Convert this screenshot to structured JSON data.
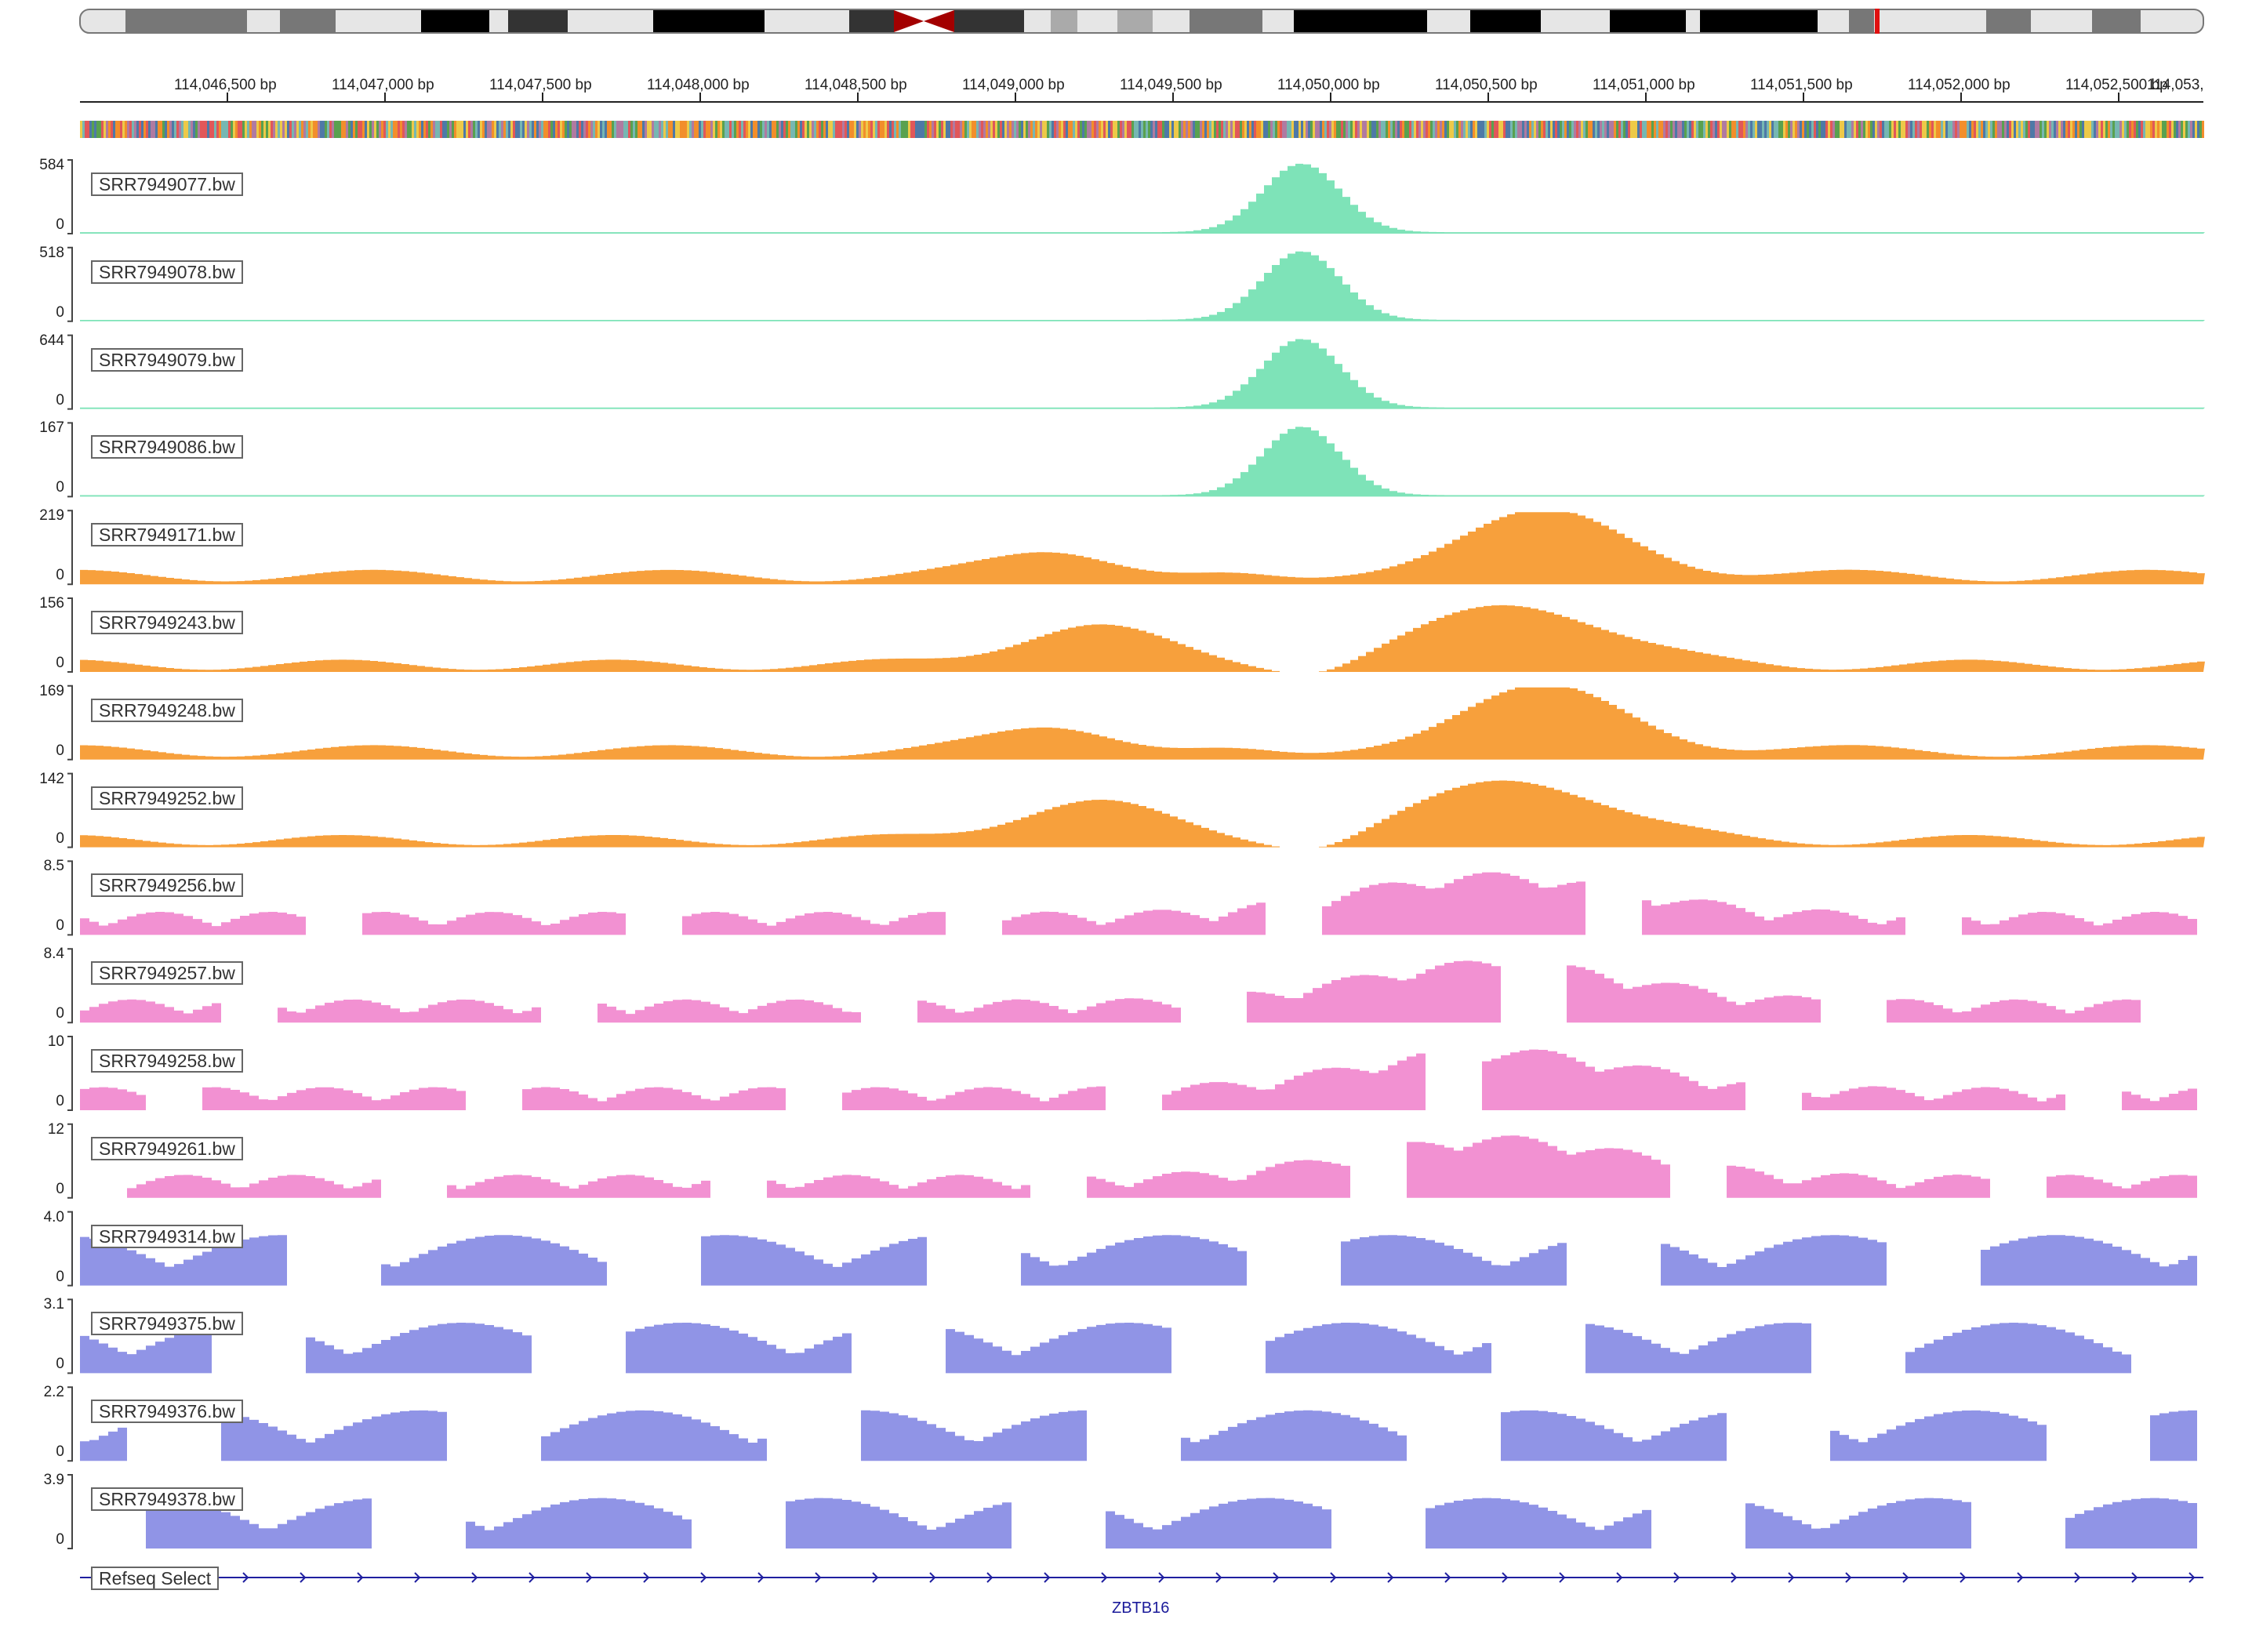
{
  "ruler": {
    "tick_labels": [
      "114,046,500 bp",
      "114,047,000 bp",
      "114,047,500 bp",
      "114,048,000 bp",
      "114,048,500 bp",
      "114,049,000 bp",
      "114,049,500 bp",
      "114,050,000 bp",
      "114,050,500 bp",
      "114,051,000 bp",
      "114,051,500 bp",
      "114,052,000 bp",
      "114,052,500 bp",
      "114,053,"
    ]
  },
  "colors": {
    "group_1": "#7ee3b8",
    "group_2": "#f7a03c",
    "group_3": "#f291d2",
    "group_4": "#9094e6",
    "gene": "#1f1fa0"
  },
  "tracks": [
    {
      "name": "SRR7949077.bw",
      "max": "584",
      "min": "0",
      "color": "group_1",
      "level": 1.0
    },
    {
      "name": "SRR7949078.bw",
      "max": "518",
      "min": "0",
      "color": "group_1",
      "level": 1.0
    },
    {
      "name": "SRR7949079.bw",
      "max": "644",
      "min": "0",
      "color": "group_1",
      "level": 1.0
    },
    {
      "name": "SRR7949086.bw",
      "max": "167",
      "min": "0",
      "color": "group_1",
      "level": 1.0
    },
    {
      "name": "SRR7949171.bw",
      "max": "219",
      "min": "0",
      "color": "group_2",
      "level": 1.0
    },
    {
      "name": "SRR7949243.bw",
      "max": "156",
      "min": "0",
      "color": "group_2",
      "level": 1.0
    },
    {
      "name": "SRR7949248.bw",
      "max": "169",
      "min": "0",
      "color": "group_2",
      "level": 1.0
    },
    {
      "name": "SRR7949252.bw",
      "max": "142",
      "min": "0",
      "color": "group_2",
      "level": 1.0
    },
    {
      "name": "SRR7949256.bw",
      "max": "8.5",
      "min": "0",
      "color": "group_3",
      "level": 1.0
    },
    {
      "name": "SRR7949257.bw",
      "max": "8.4",
      "min": "0",
      "color": "group_3",
      "level": 1.0
    },
    {
      "name": "SRR7949258.bw",
      "max": "10",
      "min": "0",
      "color": "group_3",
      "level": 1.0
    },
    {
      "name": "SRR7949261.bw",
      "max": "12",
      "min": "0",
      "color": "group_3",
      "level": 1.0
    },
    {
      "name": "SRR7949314.bw",
      "max": "4.0",
      "min": "0",
      "color": "group_4",
      "level": 1.0
    },
    {
      "name": "SRR7949375.bw",
      "max": "3.1",
      "min": "0",
      "color": "group_4",
      "level": 1.0
    },
    {
      "name": "SRR7949376.bw",
      "max": "2.2",
      "min": "0",
      "color": "group_4",
      "level": 1.0
    },
    {
      "name": "SRR7949378.bw",
      "max": "3.9",
      "min": "0",
      "color": "group_4",
      "level": 1.0
    }
  ],
  "annotation": {
    "track_name": "Refseq Select",
    "gene_name": "ZBTB16"
  }
}
